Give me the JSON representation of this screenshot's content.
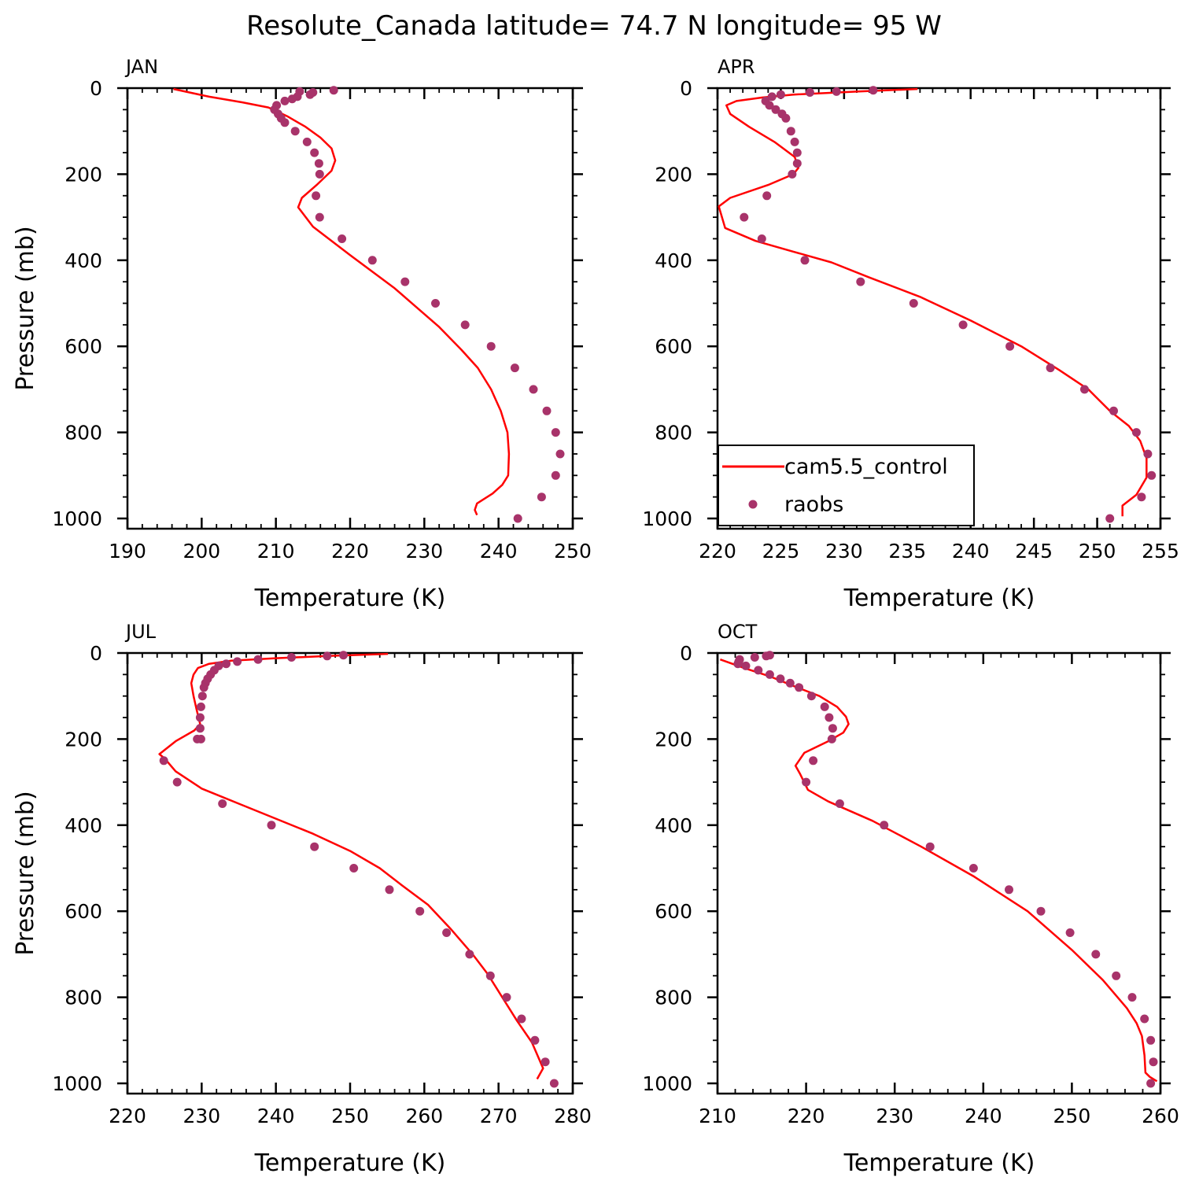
{
  "title": "Resolute_Canada  latitude= 74.7 N longitude= 95 W",
  "colors": {
    "model": "#ff0000",
    "obs": "#a8336a",
    "axes": "#000000"
  },
  "legend": {
    "model_label": "cam5.5_control",
    "obs_label": "raobs",
    "placement": "inside APR panel, lower-left"
  },
  "chart_data": [
    {
      "type": "line",
      "panel": "JAN",
      "title": "JAN",
      "xlabel": "Temperature (K)",
      "ylabel": "Pressure (mb)",
      "xlim": [
        190,
        250
      ],
      "x_ticks": [
        190,
        200,
        210,
        220,
        230,
        240,
        250
      ],
      "x_minor": 2,
      "ylim": [
        0,
        1025
      ],
      "y_ticks": [
        0,
        200,
        400,
        600,
        800,
        1000
      ],
      "y_minor": 50,
      "series": [
        {
          "name": "cam5.5_control",
          "kind": "line",
          "x": [
            196.2,
            201,
            205.5,
            209,
            211.5,
            214,
            216,
            217.5,
            218,
            217.5,
            215.5,
            213.5,
            213,
            215,
            220,
            226,
            232,
            235,
            237.2,
            239,
            240.3,
            241.2,
            241.4,
            241.3,
            240.5,
            239.2,
            237.1,
            236.8,
            237.1
          ],
          "y": [
            2,
            20,
            33,
            45,
            65,
            90,
            115,
            140,
            168,
            192,
            225,
            255,
            277,
            322,
            388,
            465,
            555,
            608,
            650,
            700,
            750,
            800,
            850,
            900,
            922,
            942,
            965,
            980,
            992
          ]
        },
        {
          "name": "raobs",
          "kind": "scatter",
          "x": [
            217.8,
            215,
            214.6,
            213.2,
            212.9,
            212.2,
            211.2,
            210.1,
            209.8,
            210.3,
            210.7,
            211.2,
            212.6,
            214.2,
            215.2,
            215.8,
            215.9,
            215.4,
            215.9,
            218.9,
            223,
            227.4,
            231.5,
            235.5,
            239,
            242.2,
            244.7,
            246.5,
            247.7,
            248.3,
            247.7,
            245.8,
            242.6
          ],
          "y": [
            5,
            10,
            15,
            8,
            20,
            25,
            30,
            40,
            50,
            60,
            70,
            80,
            100,
            125,
            150,
            175,
            200,
            250,
            300,
            350,
            400,
            450,
            500,
            550,
            600,
            650,
            700,
            750,
            800,
            850,
            900,
            950,
            1000
          ]
        }
      ]
    },
    {
      "type": "line",
      "panel": "APR",
      "title": "APR",
      "xlabel": "Temperature (K)",
      "ylabel": "",
      "xlim": [
        220,
        255
      ],
      "x_ticks": [
        220,
        225,
        230,
        235,
        240,
        245,
        250,
        255
      ],
      "x_minor": 1,
      "ylim": [
        0,
        1025
      ],
      "y_ticks": [
        0,
        200,
        400,
        600,
        800,
        1000
      ],
      "y_minor": 50,
      "series": [
        {
          "name": "cam5.5_control",
          "kind": "line",
          "x": [
            235.8,
            231,
            226,
            223.5,
            221.5,
            220.7,
            221,
            222.5,
            224.5,
            226.1,
            226.4,
            226,
            224,
            221,
            220.1,
            220.6,
            223,
            226,
            229,
            232,
            236,
            240,
            244,
            247,
            249.3,
            251,
            252.5,
            253.4,
            253.9,
            253.9,
            253.1,
            252,
            252
          ],
          "y": [
            2,
            8,
            15,
            22,
            30,
            40,
            60,
            90,
            125,
            160,
            185,
            200,
            225,
            255,
            275,
            325,
            355,
            380,
            405,
            440,
            485,
            540,
            600,
            655,
            700,
            750,
            785,
            820,
            860,
            905,
            945,
            970,
            995
          ]
        },
        {
          "name": "raobs",
          "kind": "scatter",
          "x": [
            232.3,
            229.4,
            227.3,
            225,
            224.3,
            223.8,
            224.1,
            224.6,
            225.1,
            225.4,
            225.8,
            226.1,
            226.3,
            226.3,
            225.9,
            223.9,
            222.1,
            223.5,
            226.9,
            231.3,
            235.5,
            239.4,
            243.1,
            246.3,
            249,
            251.3,
            253.1,
            254,
            254.3,
            253.5,
            251
          ],
          "y": [
            5,
            8,
            10,
            15,
            20,
            30,
            40,
            50,
            60,
            70,
            100,
            125,
            150,
            175,
            200,
            250,
            300,
            350,
            400,
            450,
            500,
            550,
            600,
            650,
            700,
            750,
            800,
            850,
            900,
            950,
            1000
          ]
        }
      ]
    },
    {
      "type": "line",
      "panel": "JUL",
      "title": "JUL",
      "xlabel": "Temperature (K)",
      "ylabel": "Pressure (mb)",
      "xlim": [
        220,
        280
      ],
      "x_ticks": [
        220,
        230,
        240,
        250,
        260,
        270,
        280
      ],
      "x_minor": 2,
      "ylim": [
        0,
        1025
      ],
      "y_ticks": [
        0,
        200,
        400,
        600,
        800,
        1000
      ],
      "y_minor": 50,
      "series": [
        {
          "name": "cam5.5_control",
          "kind": "line",
          "x": [
            255.1,
            247,
            240,
            234,
            231,
            229.5,
            228.9,
            228.6,
            228.9,
            229.3,
            229.8,
            229,
            226.5,
            224.3,
            225,
            226.5,
            230,
            235,
            240,
            245,
            250,
            254,
            257,
            260.5,
            263.5,
            266.5,
            268.5,
            270.5,
            272.5,
            274.5,
            276,
            275.2
          ],
          "y": [
            2,
            7,
            12,
            18,
            25,
            35,
            50,
            70,
            100,
            130,
            165,
            180,
            205,
            235,
            245,
            275,
            315,
            350,
            385,
            420,
            460,
            500,
            540,
            585,
            640,
            700,
            745,
            800,
            855,
            905,
            965,
            990
          ]
        },
        {
          "name": "raobs",
          "kind": "scatter",
          "x": [
            249.1,
            246.9,
            242.1,
            237.6,
            234.8,
            233.3,
            232.3,
            231.7,
            231.2,
            230.8,
            230.5,
            230.3,
            230.1,
            229.9,
            229.8,
            229.8,
            229.9,
            229.4,
            224.9,
            226.7,
            232.8,
            239.4,
            245.2,
            250.5,
            255.3,
            259.4,
            263,
            266.1,
            268.9,
            271.1,
            273.1,
            274.9,
            276.3,
            277.5
          ],
          "y": [
            5,
            7,
            10,
            15,
            20,
            25,
            30,
            40,
            50,
            60,
            70,
            80,
            100,
            125,
            150,
            175,
            200,
            200,
            250,
            300,
            350,
            400,
            450,
            500,
            550,
            600,
            650,
            700,
            750,
            800,
            850,
            900,
            950,
            1000
          ]
        }
      ]
    },
    {
      "type": "line",
      "panel": "OCT",
      "title": "OCT",
      "xlabel": "Temperature (K)",
      "ylabel": "",
      "xlim": [
        210,
        260
      ],
      "x_ticks": [
        210,
        220,
        230,
        240,
        250,
        260
      ],
      "x_minor": 2,
      "ylim": [
        0,
        1025
      ],
      "y_ticks": [
        0,
        200,
        400,
        600,
        800,
        1000
      ],
      "y_minor": 50,
      "series": [
        {
          "name": "cam5.5_control",
          "kind": "line",
          "x": [
            210.3,
            213,
            216,
            219,
            221.5,
            223.5,
            224.5,
            224.8,
            224.2,
            222.5,
            219.8,
            218.8,
            219.3,
            220.2,
            222.5,
            227.5,
            233,
            239,
            245,
            250,
            253.5,
            256.2,
            257.3,
            257.9,
            258.2,
            258.3,
            258.8,
            259.6
          ],
          "y": [
            15,
            35,
            55,
            80,
            100,
            125,
            148,
            165,
            185,
            205,
            232,
            262,
            280,
            318,
            345,
            390,
            450,
            520,
            600,
            690,
            760,
            825,
            860,
            890,
            935,
            975,
            985,
            995
          ]
        },
        {
          "name": "raobs",
          "kind": "scatter",
          "x": [
            215.9,
            215.5,
            214.2,
            212.5,
            212.4,
            212.3,
            213.2,
            214.6,
            215.9,
            217.1,
            218.2,
            219.2,
            220.6,
            222.1,
            222.6,
            223,
            222.9,
            220.8,
            220,
            223.8,
            228.8,
            234,
            238.9,
            242.9,
            246.5,
            249.8,
            252.7,
            255,
            256.8,
            258.2,
            258.9,
            259.2,
            258.9
          ],
          "y": [
            5,
            7,
            10,
            15,
            20,
            25,
            30,
            40,
            50,
            60,
            70,
            80,
            100,
            125,
            150,
            175,
            200,
            250,
            300,
            350,
            400,
            450,
            500,
            550,
            600,
            650,
            700,
            750,
            800,
            850,
            900,
            950,
            1000
          ]
        }
      ]
    }
  ]
}
